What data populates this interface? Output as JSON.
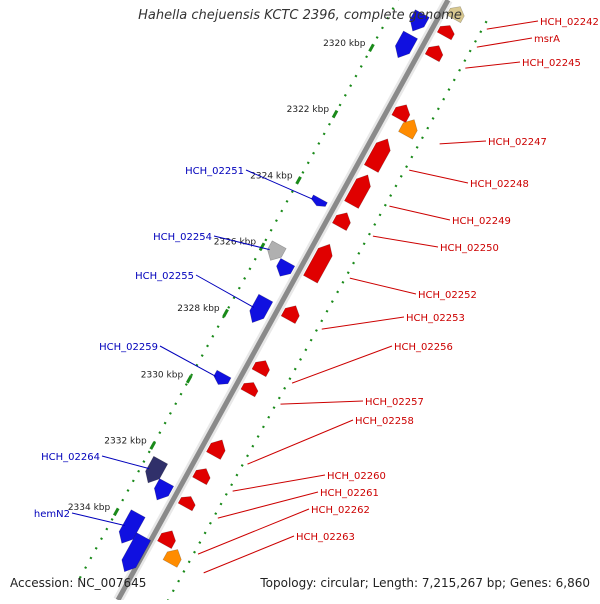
{
  "header": {
    "title": "Hahella chejuensis KCTC 2396, complete genome"
  },
  "footer": {
    "accession": "Accession: NC_007645",
    "summary": "Topology: circular; Length: 7,215,267 bp; Genes: 6,860"
  },
  "colors": {
    "backbone": "#8a8a8a",
    "tick": "#1a8a1a",
    "forward_gene": "#e00000",
    "reverse_gene": "#1010e0",
    "other_gene": "#ff8c00",
    "pseudo_gene": "#b0b0b0",
    "label_forward": "#cc0000",
    "label_reverse": "#0000bb"
  },
  "ruler": {
    "labels": [
      "2320 kbp",
      "2322 kbp",
      "2324 kbp",
      "2326 kbp",
      "2328 kbp",
      "2330 kbp",
      "2332 kbp",
      "2334 kbp"
    ]
  },
  "genes_right": [
    "HCH_02242",
    "msrA",
    "HCH_02245",
    "HCH_02247",
    "HCH_02248",
    "HCH_02249",
    "HCH_02250",
    "HCH_02252",
    "HCH_02253",
    "HCH_02256",
    "HCH_02257",
    "HCH_02258",
    "HCH_02260",
    "HCH_02261",
    "HCH_02262",
    "HCH_02263"
  ],
  "genes_left": [
    "HCH_02251",
    "HCH_02254",
    "HCH_02255",
    "HCH_02259",
    "HCH_02264",
    "hemN2"
  ]
}
